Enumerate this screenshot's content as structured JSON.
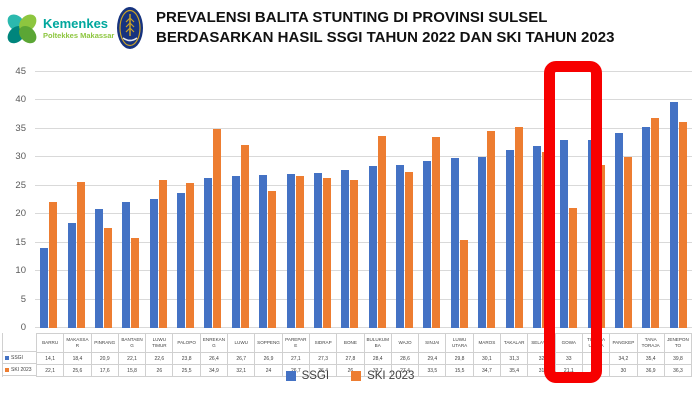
{
  "header": {
    "logo_kemenkes": {
      "line1": "Kemenkes",
      "line2": "Poltekkes Makassar"
    },
    "title_line1": "PREVALENSI BALITA STUNTING DI PROVINSI SULSEL",
    "title_line2": "BERDASARKAN HASIL SSGI TAHUN 2022 DAN SKI TAHUN 2023"
  },
  "colors": {
    "ssgi_blue": "#4472C4",
    "ski_orange": "#ED7D31",
    "highlight_red": "#F70000",
    "gridline_gray": "#D9D9D9"
  },
  "chart_data": {
    "type": "bar",
    "title": "PREVALENSI BALITA STUNTING DI PROVINSI SULSEL BERDASARKAN HASIL SSGI TAHUN 2022 DAN SKI TAHUN 2023",
    "categories": [
      "BARRU",
      "MAKASSAR",
      "PINRANG",
      "BANTAENG",
      "LUWU TIMUR",
      "PALOPO",
      "ENREKANG",
      "LUWU",
      "SOPPENG",
      "PAREPARE",
      "SIDRAP",
      "BONE",
      "BULUKUMBA",
      "WAJO",
      "SINJAI",
      "LUWU UTARA",
      "MAROS",
      "TAKALAR",
      "SELAYAR",
      "GOWA",
      "TORAJA UTARA",
      "PANGKEP",
      "TANA TORAJA",
      "JENEPONTO"
    ],
    "series": [
      {
        "name": "SSGI",
        "color": "#4472C4",
        "values": [
          14.1,
          18.4,
          20.9,
          22.1,
          22.6,
          23.8,
          26.4,
          26.7,
          26.9,
          27.1,
          27.3,
          27.8,
          28.4,
          28.6,
          29.4,
          29.8,
          30.1,
          31.3,
          32,
          33,
          33.1,
          34.2,
          35.4,
          39.8
        ],
        "display": [
          "14,1",
          "18,4",
          "20,9",
          "22,1",
          "22,6",
          "23,8",
          "26,4",
          "26,7",
          "26,9",
          "27,1",
          "27,3",
          "27,8",
          "28,4",
          "28,6",
          "29,4",
          "29,8",
          "30,1",
          "31,3",
          "32",
          "33",
          "33,1",
          "34,2",
          "35,4",
          "39,8"
        ]
      },
      {
        "name": "SKI 2023",
        "color": "#ED7D31",
        "values": [
          22.1,
          25.6,
          17.6,
          15.8,
          26,
          25.5,
          34.9,
          32.1,
          24,
          26.7,
          26.4,
          26,
          33.7,
          27.4,
          33.5,
          15.5,
          34.7,
          35.4,
          31,
          21.1,
          28.7,
          30,
          36.9,
          36.3
        ],
        "display": [
          "22,1",
          "25,6",
          "17,6",
          "15,8",
          "26",
          "25,5",
          "34,9",
          "32,1",
          "24",
          "26,7",
          "26,4",
          "26",
          "33,7",
          "27,4",
          "33,5",
          "15,5",
          "34,7",
          "35,4",
          "31",
          "21,1",
          "28,7",
          "30",
          "36,9",
          "36,3"
        ]
      }
    ],
    "ylim": [
      0,
      45
    ],
    "y_ticks": [
      0,
      5,
      10,
      15,
      20,
      25,
      30,
      35,
      40,
      45
    ],
    "grid": true,
    "legend_position": "bottom",
    "highlighted_category": "GOWA"
  }
}
